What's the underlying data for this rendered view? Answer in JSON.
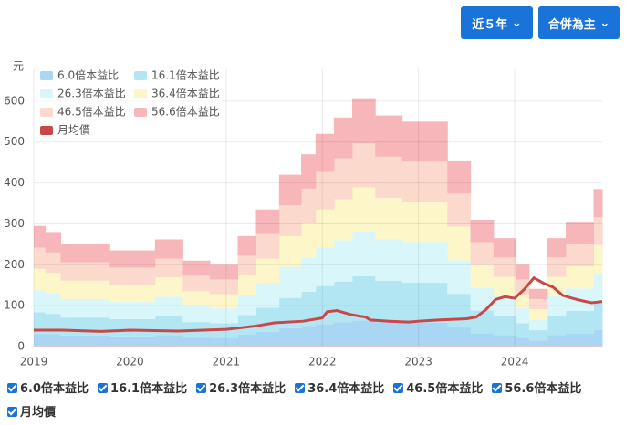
{
  "buttons": [
    "近５年",
    "合併為主"
  ],
  "chart_data": {
    "type": "pe-band",
    "y_label": "元",
    "xlim": [
      2019,
      2024.91
    ],
    "xticks": [
      2019,
      2020,
      2021,
      2022,
      2023,
      2024
    ],
    "ylim": [
      0,
      680
    ],
    "yticks": [
      0,
      100,
      200,
      300,
      400,
      500,
      600
    ],
    "grid": true,
    "step": true,
    "x": [
      2019.0,
      2019.12,
      2019.28,
      2019.79,
      2020.26,
      2020.55,
      2020.83,
      2021.12,
      2021.31,
      2021.55,
      2021.78,
      2021.93,
      2022.12,
      2022.31,
      2022.55,
      2022.83,
      2023.3,
      2023.54,
      2023.78,
      2024.01,
      2024.15,
      2024.34,
      2024.53,
      2024.82
    ],
    "series": [
      {
        "name": "6.0倍本益比",
        "color": "#a9d6f2",
        "values": [
          31,
          30,
          27,
          25,
          28,
          22,
          21,
          29,
          36,
          45,
          50,
          55,
          59,
          64,
          60,
          58,
          48,
          33,
          28,
          21,
          15,
          28,
          32,
          41
        ]
      },
      {
        "name": "16.1倍本益比",
        "color": "#b3e6f3",
        "values": [
          84,
          80,
          71,
          67,
          75,
          60,
          57,
          77,
          95,
          119,
          134,
          148,
          159,
          172,
          161,
          156,
          129,
          88,
          75,
          57,
          40,
          75,
          87,
          109
        ]
      },
      {
        "name": "26.3倍本益比",
        "color": "#d9f7fb",
        "values": [
          137,
          130,
          116,
          109,
          122,
          98,
          93,
          125,
          156,
          195,
          218,
          242,
          260,
          281,
          262,
          256,
          211,
          144,
          123,
          93,
          65,
          123,
          142,
          179
        ]
      },
      {
        "name": "36.4倍本益比",
        "color": "#fdf6c9",
        "values": [
          190,
          180,
          161,
          151,
          169,
          135,
          128,
          174,
          215,
          270,
          302,
          335,
          360,
          389,
          363,
          354,
          293,
          199,
          170,
          128,
          91,
          170,
          196,
          248
        ]
      },
      {
        "name": "46.5倍本益比",
        "color": "#fcd9cd",
        "values": [
          242,
          230,
          206,
          193,
          215,
          173,
          164,
          222,
          275,
          345,
          386,
          427,
          460,
          497,
          464,
          452,
          374,
          255,
          218,
          164,
          116,
          218,
          251,
          316
        ]
      },
      {
        "name": "56.6倍本益比",
        "color": "#f7b6ba",
        "values": [
          295,
          280,
          250,
          235,
          262,
          210,
          200,
          270,
          335,
          420,
          470,
          520,
          560,
          605,
          565,
          550,
          455,
          310,
          265,
          200,
          141,
          265,
          305,
          385
        ]
      },
      {
        "name": "月均價",
        "color": "#c84848",
        "kind": "line",
        "x": [
          2019.0,
          2019.3,
          2019.7,
          2020.0,
          2020.5,
          2021.0,
          2021.3,
          2021.5,
          2021.8,
          2022.0,
          2022.05,
          2022.15,
          2022.3,
          2022.45,
          2022.5,
          2022.7,
          2022.9,
          2023.0,
          2023.2,
          2023.5,
          2023.6,
          2023.7,
          2023.8,
          2023.9,
          2024.0,
          2024.1,
          2024.2,
          2024.3,
          2024.4,
          2024.5,
          2024.6,
          2024.7,
          2024.8,
          2024.91
        ],
        "values": [
          40,
          40,
          37,
          40,
          38,
          42,
          50,
          58,
          62,
          70,
          85,
          88,
          78,
          72,
          65,
          62,
          60,
          62,
          65,
          68,
          72,
          90,
          115,
          122,
          118,
          140,
          168,
          155,
          145,
          125,
          118,
          112,
          107,
          110
        ]
      }
    ]
  }
}
